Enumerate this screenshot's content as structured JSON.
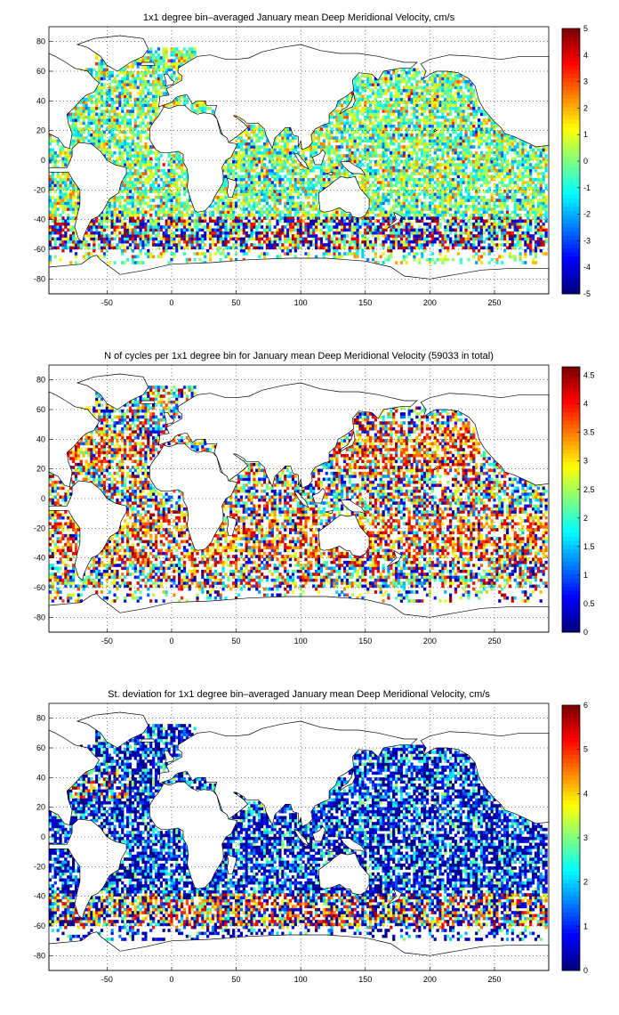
{
  "panels": [
    {
      "id": "mean",
      "title": "1x1 degree bin–averaged January mean Deep Meridional Velocity, cm/s",
      "colorbar": {
        "min": -5,
        "max": 5,
        "ticks": [
          "5",
          "4",
          "3",
          "2",
          "1",
          "0",
          "-1",
          "-2",
          "-3",
          "-4",
          "-5"
        ]
      },
      "mode": "mean"
    },
    {
      "id": "count",
      "title": "N of cycles per 1x1 degree bin for January mean Deep Meridional Velocity (59033 in total)",
      "colorbar": {
        "min": 0,
        "max": 4.65,
        "ticks": [
          "4.5",
          "4",
          "3.5",
          "3",
          "2.5",
          "2",
          "1.5",
          "1",
          "0.5",
          "0"
        ]
      },
      "mode": "count"
    },
    {
      "id": "std",
      "title": "St. deviation for 1x1 degree bin–averaged January mean Deep Meridional Velocity, cm/s",
      "colorbar": {
        "min": 0,
        "max": 6,
        "ticks": [
          "6",
          "5",
          "4",
          "3",
          "2",
          "1",
          "0"
        ]
      },
      "mode": "std"
    }
  ],
  "axes": {
    "xticks": [
      "-50",
      "0",
      "50",
      "100",
      "150",
      "200",
      "250"
    ],
    "yticks": [
      "80",
      "60",
      "40",
      "20",
      "0",
      "-20",
      "-40",
      "-60",
      "-80"
    ]
  },
  "colormap": "jet"
}
